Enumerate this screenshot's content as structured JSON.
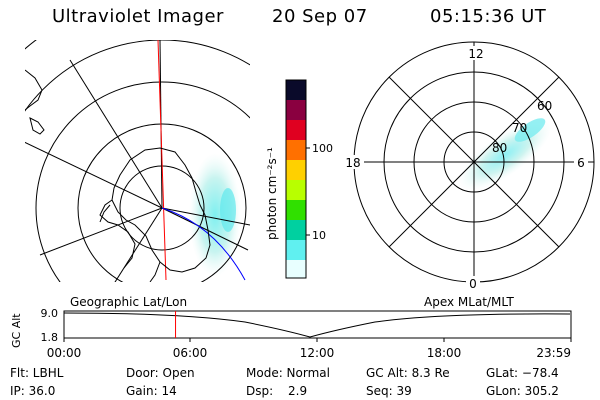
{
  "header": {
    "instrument": "Ultraviolet Imager",
    "date": "20 Sep 07",
    "time": "05:15:36 UT"
  },
  "left_map": {
    "label": "Geographic Lat/Lon"
  },
  "right_map": {
    "label": "Apex MLat/MLT",
    "mlt_labels": [
      "12",
      "18",
      "6",
      "0"
    ],
    "lat_labels": [
      "60",
      "70",
      "80"
    ]
  },
  "colorbar": {
    "unit_label": "photon cm⁻²s⁻¹",
    "ticks": [
      "100",
      "10"
    ],
    "colors": [
      "#0a0a2a",
      "#8a0040",
      "#e00020",
      "#ff7000",
      "#ffd000",
      "#b8ff00",
      "#30e000",
      "#00d0a0",
      "#60f0f0",
      "#e8ffff"
    ]
  },
  "altitude_plot": {
    "ylabel": "GC Alt",
    "yticks": [
      "9.0",
      "1.8"
    ],
    "xticks": [
      "00:00",
      "06:00",
      "12:00",
      "18:00",
      "23:59"
    ],
    "current_time_fraction": 0.22,
    "current_time_color": "#ff0000"
  },
  "status": {
    "flt": "Flt: LBHL",
    "ip": "IP: 36.0",
    "door": "Door: Open",
    "gain": "Gain: 14",
    "mode": "Mode: Normal",
    "dsp_label": "Dsp:",
    "dsp_value": "2.9",
    "gc_alt": "GC Alt: 8.3 Re",
    "seq": "Seq: 39",
    "glat": "GLat: −78.4",
    "glon": "GLon: 305.2"
  }
}
